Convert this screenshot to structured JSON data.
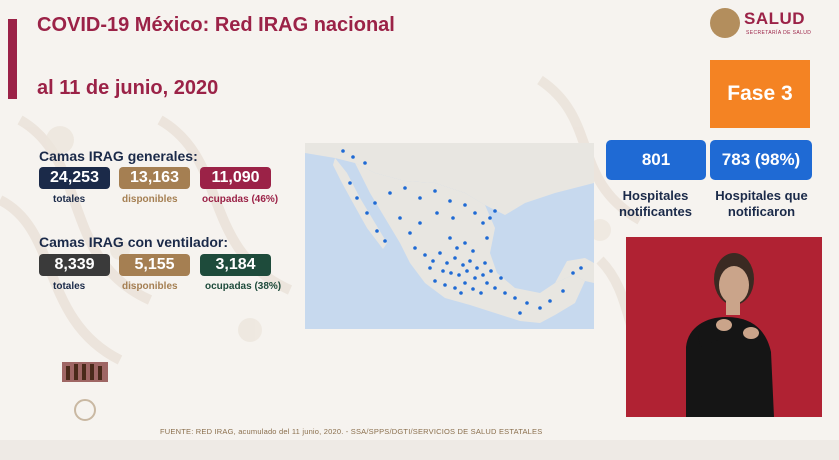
{
  "header": {
    "title": "COVID-19 México: Red IRAG nacional",
    "date": "al 11 de junio, 2020",
    "logo_text": "SALUD",
    "logo_subtext": "SECRETARÍA DE SALUD"
  },
  "phase": {
    "label": "Fase 3"
  },
  "general_beds": {
    "heading": "Camas IRAG generales:",
    "total": {
      "value": "24,253",
      "label": "totales"
    },
    "available": {
      "value": "13,163",
      "label": "disponibles"
    },
    "occupied": {
      "value": "11,090",
      "label": "ocupadas (46%)"
    }
  },
  "ventilator_beds": {
    "heading": "Camas IRAG con ventilador:",
    "total": {
      "value": "8,339",
      "label": "totales"
    },
    "available": {
      "value": "5,155",
      "label": "disponibles"
    },
    "occupied": {
      "value": "3,184",
      "label": "ocupadas (38%)"
    }
  },
  "hospitals": {
    "notifying": {
      "value": "801",
      "label": "Hospitales notificantes"
    },
    "reported": {
      "value": "783 (98%)",
      "label": "Hospitales que notificaron"
    }
  },
  "source": "FUENTE: RED IRAG, acumulado del 11  junio, 2020.  -  SSA/SPPS/DGTI/SERVICIOS DE SALUD ESTATALES",
  "colors": {
    "accent": "#9b2247",
    "navy": "#1b2a49",
    "gold": "#a57f52",
    "green": "#1e4b3b",
    "dark_gray": "#3a3a3a",
    "phase": "#f48323",
    "hospital_blue": "#1f6ad4"
  },
  "icons": [
    "salud-logo-icon",
    "mexico-map",
    "sign-language-interpreter",
    "government-emblem-icon"
  ]
}
